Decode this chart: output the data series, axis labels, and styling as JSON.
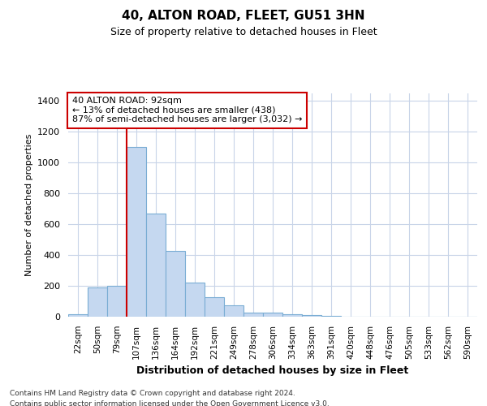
{
  "title": "40, ALTON ROAD, FLEET, GU51 3HN",
  "subtitle": "Size of property relative to detached houses in Fleet",
  "xlabel": "Distribution of detached houses by size in Fleet",
  "ylabel": "Number of detached properties",
  "all_labels": [
    "22sqm",
    "50sqm",
    "79sqm",
    "107sqm",
    "136sqm",
    "164sqm",
    "192sqm",
    "221sqm",
    "249sqm",
    "278sqm",
    "306sqm",
    "334sqm",
    "363sqm",
    "391sqm",
    "420sqm",
    "448sqm",
    "476sqm",
    "505sqm",
    "533sqm",
    "562sqm",
    "590sqm"
  ],
  "all_values": [
    15,
    190,
    200,
    1100,
    670,
    425,
    220,
    125,
    75,
    28,
    25,
    15,
    10,
    5,
    2,
    1,
    0,
    0,
    0,
    0,
    0
  ],
  "bar_color": "#c5d8f0",
  "bar_edge_color": "#7aadd4",
  "vline_color": "#cc0000",
  "vline_x_index": 3,
  "annotation_text": "40 ALTON ROAD: 92sqm\n← 13% of detached houses are smaller (438)\n87% of semi-detached houses are larger (3,032) →",
  "annotation_box_color": "#ffffff",
  "annotation_box_edge": "#cc0000",
  "ylim": [
    0,
    1450
  ],
  "yticks": [
    0,
    200,
    400,
    600,
    800,
    1000,
    1200,
    1400
  ],
  "background_color": "#ffffff",
  "grid_color": "#c8d4e8",
  "footer1": "Contains HM Land Registry data © Crown copyright and database right 2024.",
  "footer2": "Contains public sector information licensed under the Open Government Licence v3.0."
}
